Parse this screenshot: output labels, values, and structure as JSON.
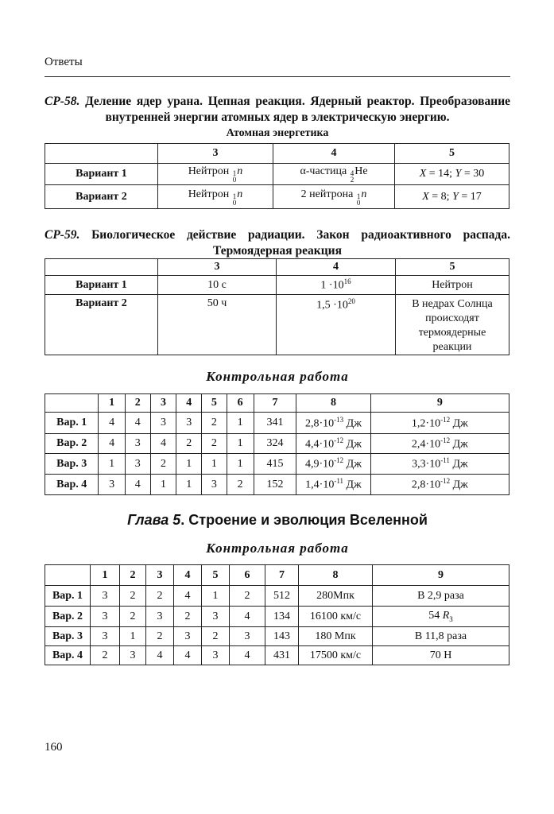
{
  "running_header": "Ответы",
  "page_number": "160",
  "sections": [
    {
      "num": "СР-58.",
      "title": "Деление ядер урана. Цепная реакция. Ядерный реактор. Преобразование внутренней энергии атомных ядер в электрическую энергию.",
      "subtitle": "Атомная энергетика",
      "table": {
        "headers": [
          "",
          "3",
          "4",
          "5"
        ],
        "rows": [
          [
            [
              "Вариант 1"
            ],
            [
              "Нейтрон ",
              {
                "sup": "1",
                "sub": "0"
              },
              {
                "t": "n",
                "it": true
              }
            ],
            [
              "α-частица ",
              {
                "sup": "4",
                "sub": "2"
              },
              "He"
            ],
            [
              {
                "t": "X",
                "it": true
              },
              " = 14; ",
              {
                "t": "Y",
                "it": true
              },
              " = 30"
            ]
          ],
          [
            [
              "Вариант 2"
            ],
            [
              "Нейтрон ",
              {
                "sup": "1",
                "sub": "0"
              },
              {
                "t": "n",
                "it": true
              }
            ],
            [
              "2 нейтрона ",
              {
                "sup": "1",
                "sub": "0"
              },
              {
                "t": "n",
                "it": true
              }
            ],
            [
              {
                "t": "X",
                "it": true
              },
              " = 8; ",
              {
                "t": "Y",
                "it": true
              },
              " = 17"
            ]
          ]
        ]
      }
    },
    {
      "num": "СР-59.",
      "title": "Биологическое действие радиации. Закон радиоактивного распада. Термоядерная реакция",
      "subtitle": "",
      "table": {
        "headers": [
          "",
          "3",
          "4",
          "5"
        ],
        "rows": [
          [
            [
              "Вариант 1"
            ],
            [
              "10 с"
            ],
            [
              "1 ·10",
              {
                "pow": "16"
              }
            ],
            [
              "Нейтрон"
            ]
          ],
          [
            [
              "Вариант 2"
            ],
            [
              "50 ч"
            ],
            [
              "1,5 ·10",
              {
                "pow": "20"
              }
            ],
            [
              "В недрах Солнца происходят термоядерные реакции"
            ]
          ]
        ]
      }
    }
  ],
  "control_work_1": {
    "title": "Контрольная работа",
    "headers": [
      "",
      "1",
      "2",
      "3",
      "4",
      "5",
      "6",
      "7",
      "8",
      "9"
    ],
    "rows": [
      [
        [
          "Вар. 1"
        ],
        [
          "4"
        ],
        [
          "4"
        ],
        [
          "3"
        ],
        [
          "3"
        ],
        [
          "2"
        ],
        [
          "1"
        ],
        [
          "341"
        ],
        [
          "2,8·10",
          {
            "pow": "-13"
          },
          " Дж"
        ],
        [
          "1,2·10",
          {
            "pow": "-12"
          },
          " Дж"
        ]
      ],
      [
        [
          "Вар. 2"
        ],
        [
          "4"
        ],
        [
          "3"
        ],
        [
          "4"
        ],
        [
          "2"
        ],
        [
          "2"
        ],
        [
          "1"
        ],
        [
          "324"
        ],
        [
          "4,4·10",
          {
            "pow": "-12"
          },
          " Дж"
        ],
        [
          "2,4·10",
          {
            "pow": "-12"
          },
          " Дж"
        ]
      ],
      [
        [
          "Вар. 3"
        ],
        [
          "1"
        ],
        [
          "3"
        ],
        [
          "2"
        ],
        [
          "1"
        ],
        [
          "1"
        ],
        [
          "1"
        ],
        [
          "415"
        ],
        [
          "4,9·10",
          {
            "pow": "-12"
          },
          " Дж"
        ],
        [
          "3,3·10",
          {
            "pow": "-11"
          },
          " Дж"
        ]
      ],
      [
        [
          "Вар. 4"
        ],
        [
          "3"
        ],
        [
          "4"
        ],
        [
          "1"
        ],
        [
          "1"
        ],
        [
          "3"
        ],
        [
          "2"
        ],
        [
          "152"
        ],
        [
          "1,4·10",
          {
            "pow": "-11"
          },
          " Дж"
        ],
        [
          "2,8·10",
          {
            "pow": "-12"
          },
          " Дж"
        ]
      ]
    ]
  },
  "chapter": {
    "label": "Глава 5",
    "title": ". Строение и эволюция Вселенной"
  },
  "control_work_2": {
    "title": "Контрольная работа",
    "headers": [
      "",
      "1",
      "2",
      "3",
      "4",
      "5",
      "6",
      "7",
      "8",
      "9"
    ],
    "rows": [
      [
        [
          "Вар. 1"
        ],
        [
          "3"
        ],
        [
          "2"
        ],
        [
          "2"
        ],
        [
          "4"
        ],
        [
          "1"
        ],
        [
          "2"
        ],
        [
          "512"
        ],
        [
          "280Мпк"
        ],
        [
          "В 2,9 раза"
        ]
      ],
      [
        [
          "Вар. 2"
        ],
        [
          "3"
        ],
        [
          "2"
        ],
        [
          "3"
        ],
        [
          "2"
        ],
        [
          "3"
        ],
        [
          "4"
        ],
        [
          "134"
        ],
        [
          "16100 км/с"
        ],
        [
          "54 ",
          {
            "t": "R",
            "it": true
          },
          {
            "lsub": "З"
          }
        ]
      ],
      [
        [
          "Вар. 3"
        ],
        [
          "3"
        ],
        [
          "1"
        ],
        [
          "2"
        ],
        [
          "3"
        ],
        [
          "2"
        ],
        [
          "3"
        ],
        [
          "143"
        ],
        [
          "180 Мпк"
        ],
        [
          "В 11,8 раза"
        ]
      ],
      [
        [
          "Вар. 4"
        ],
        [
          "2"
        ],
        [
          "3"
        ],
        [
          "4"
        ],
        [
          "4"
        ],
        [
          "3"
        ],
        [
          "4"
        ],
        [
          "431"
        ],
        [
          "17500 км/с"
        ],
        [
          "70 Н"
        ]
      ]
    ]
  }
}
